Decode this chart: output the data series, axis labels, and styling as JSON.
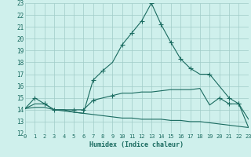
{
  "xlabel": "Humidex (Indice chaleur)",
  "xlim": [
    0,
    23
  ],
  "ylim": [
    12,
    23
  ],
  "yticks": [
    12,
    13,
    14,
    15,
    16,
    17,
    18,
    19,
    20,
    21,
    22,
    23
  ],
  "xticks": [
    0,
    1,
    2,
    3,
    4,
    5,
    6,
    7,
    8,
    9,
    10,
    11,
    12,
    13,
    14,
    15,
    16,
    17,
    18,
    19,
    20,
    21,
    22,
    23
  ],
  "bg_color": "#cff0ec",
  "grid_color": "#a0ccc8",
  "line_color": "#1a6b60",
  "line1_x": [
    0,
    1,
    2,
    3,
    4,
    5,
    6,
    7,
    8,
    9,
    10,
    11,
    12,
    13,
    14,
    15,
    16,
    17,
    18,
    19,
    20,
    21,
    22,
    23
  ],
  "line1_y": [
    14.1,
    15.0,
    14.5,
    14.0,
    14.0,
    13.8,
    13.7,
    16.5,
    17.3,
    18.0,
    19.5,
    20.5,
    21.5,
    23.0,
    21.2,
    19.7,
    18.3,
    17.5,
    17.0,
    17.0,
    16.0,
    15.0,
    14.5,
    13.2
  ],
  "line1_markers_x": [
    1,
    2,
    7,
    8,
    10,
    11,
    12,
    13,
    14,
    15,
    16,
    17,
    19,
    21,
    22
  ],
  "line1_markers_y": [
    15.0,
    14.5,
    16.5,
    17.3,
    19.5,
    20.5,
    21.5,
    23.0,
    21.2,
    19.7,
    18.3,
    17.5,
    17.0,
    15.0,
    14.5
  ],
  "line2_x": [
    0,
    1,
    2,
    3,
    4,
    5,
    6,
    7,
    8,
    9,
    10,
    11,
    12,
    13,
    14,
    15,
    16,
    17,
    18,
    19,
    20,
    21,
    22,
    23
  ],
  "line2_y": [
    14.1,
    14.5,
    14.5,
    14.0,
    14.0,
    14.0,
    14.0,
    14.8,
    15.0,
    15.2,
    15.4,
    15.4,
    15.5,
    15.5,
    15.6,
    15.7,
    15.7,
    15.7,
    15.8,
    14.4,
    15.0,
    14.5,
    14.5,
    12.5
  ],
  "line2_markers_x": [
    2,
    3,
    5,
    6,
    7,
    9,
    20,
    21,
    22
  ],
  "line2_markers_y": [
    14.5,
    14.0,
    14.0,
    14.0,
    14.8,
    15.2,
    15.0,
    14.5,
    14.5
  ],
  "line3_x": [
    0,
    1,
    2,
    3,
    4,
    5,
    6,
    7,
    8,
    9,
    10,
    11,
    12,
    13,
    14,
    15,
    16,
    17,
    18,
    19,
    20,
    21,
    22,
    23
  ],
  "line3_y": [
    14.1,
    14.2,
    14.2,
    14.0,
    13.9,
    13.8,
    13.7,
    13.6,
    13.5,
    13.4,
    13.3,
    13.3,
    13.2,
    13.2,
    13.2,
    13.1,
    13.1,
    13.0,
    13.0,
    12.9,
    12.8,
    12.7,
    12.6,
    12.5
  ]
}
